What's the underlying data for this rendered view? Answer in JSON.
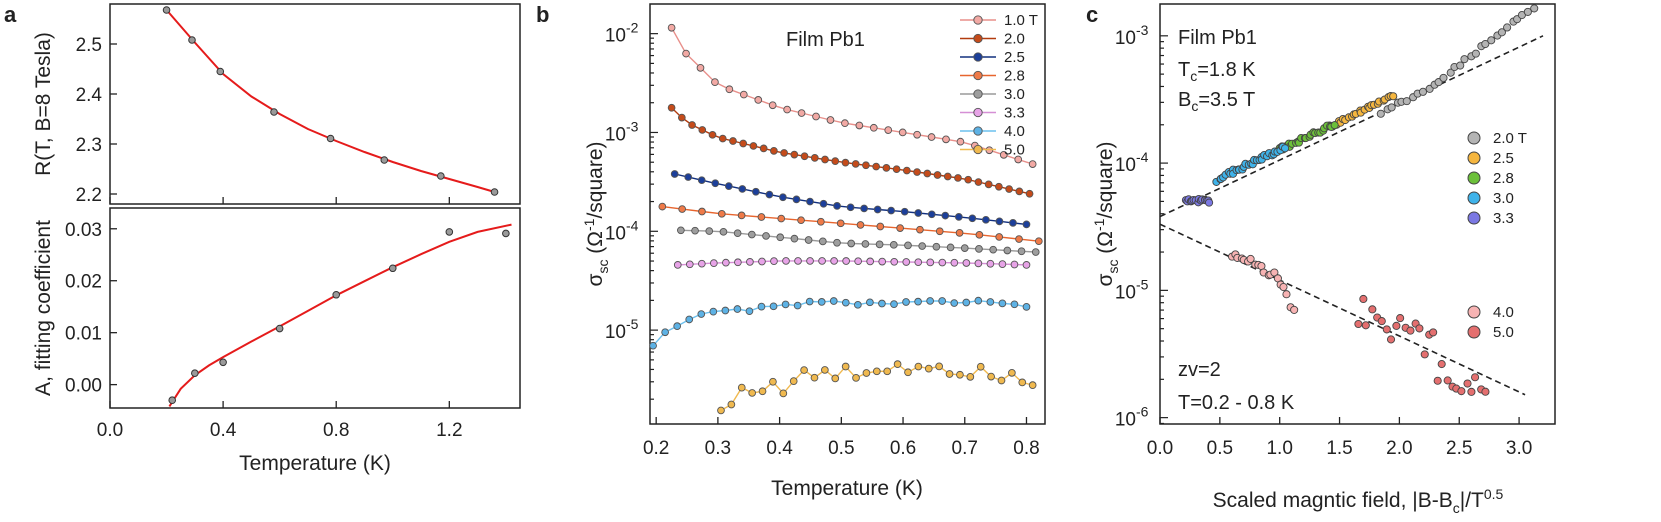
{
  "panels": {
    "a": "a",
    "b": "b",
    "c": "c"
  },
  "chart_data": [
    {
      "id": "a_top",
      "type": "scatter",
      "ylabel": "R(T, B=8 Tesla)",
      "xlim": [
        0.0,
        1.45
      ],
      "ylim": [
        2.18,
        2.58
      ],
      "yticks": [
        2.2,
        2.3,
        2.4,
        2.5
      ],
      "ytick_labels": [
        "2.2",
        "2.3",
        "2.4",
        "2.5"
      ],
      "points_x": [
        0.2,
        0.29,
        0.39,
        0.58,
        0.78,
        0.97,
        1.17,
        1.36
      ],
      "points_y": [
        2.568,
        2.508,
        2.445,
        2.364,
        2.311,
        2.268,
        2.236,
        2.204
      ],
      "fit_x": [
        0.2,
        0.3,
        0.4,
        0.5,
        0.6,
        0.7,
        0.8,
        0.9,
        1.0,
        1.1,
        1.2,
        1.3,
        1.36
      ],
      "fit_y": [
        2.568,
        2.503,
        2.44,
        2.395,
        2.36,
        2.33,
        2.306,
        2.284,
        2.264,
        2.246,
        2.23,
        2.214,
        2.204
      ],
      "point_color": "#9a9a9a",
      "fit_color": "#e51b1b"
    },
    {
      "id": "a_bottom",
      "type": "scatter",
      "xlabel": "Temperature (K)",
      "ylabel": "A, fitting coefficient",
      "xlim": [
        0.0,
        1.45
      ],
      "ylim": [
        -0.0045,
        0.034
      ],
      "xticks": [
        0.0,
        0.4,
        0.8,
        1.2
      ],
      "xtick_labels": [
        "0.0",
        "0.4",
        "0.8",
        "1.2"
      ],
      "yticks": [
        0.0,
        0.01,
        0.02,
        0.03
      ],
      "ytick_labels": [
        "0.00",
        "0.01",
        "0.02",
        "0.03"
      ],
      "points_x": [
        0.22,
        0.3,
        0.4,
        0.6,
        0.8,
        1.0,
        1.2,
        1.4
      ],
      "points_y": [
        -0.003,
        0.0022,
        0.0043,
        0.0108,
        0.0173,
        0.0224,
        0.0294,
        0.0291
      ],
      "fit_x": [
        0.21,
        0.25,
        0.3,
        0.35,
        0.4,
        0.5,
        0.6,
        0.7,
        0.8,
        0.9,
        1.0,
        1.1,
        1.2,
        1.3,
        1.42
      ],
      "fit_y": [
        -0.0042,
        -0.0008,
        0.0018,
        0.0037,
        0.0053,
        0.0083,
        0.0112,
        0.0142,
        0.0172,
        0.0199,
        0.0226,
        0.0251,
        0.0275,
        0.0294,
        0.0308
      ],
      "point_color": "#9a9a9a",
      "fit_color": "#e51b1b"
    },
    {
      "id": "b",
      "type": "line",
      "title": "Film Pb1",
      "xlabel": "Temperature (K)",
      "ylabel": "σ_sc (Ω⁻¹/square)",
      "yscale": "log",
      "xlim": [
        0.19,
        0.83
      ],
      "ylim_log10": [
        -5.95,
        -1.7
      ],
      "xticks": [
        0.2,
        0.3,
        0.4,
        0.5,
        0.6,
        0.7,
        0.8
      ],
      "xtick_labels": [
        "0.2",
        "0.3",
        "0.4",
        "0.5",
        "0.6",
        "0.7",
        "0.8"
      ],
      "ytick_exps": [
        -5,
        -4,
        -3,
        -2
      ],
      "ytick_labels": [
        "10",
        "10",
        "10",
        "10"
      ],
      "ytick_sups": [
        "-5",
        "-4",
        "-3",
        "-2"
      ],
      "series": [
        {
          "name": "1.0 T",
          "color": "#f2a9a4",
          "line": "#e88f8a",
          "start": 0.225,
          "end": 0.81,
          "n": 26,
          "anchors": [
            [
              0.225,
              -1.94
            ],
            [
              0.24,
              -2.15
            ],
            [
              0.3,
              -2.52
            ],
            [
              0.4,
              -2.75
            ],
            [
              0.5,
              -2.9
            ],
            [
              0.6,
              -3.0
            ],
            [
              0.7,
              -3.1
            ],
            [
              0.81,
              -3.32
            ]
          ]
        },
        {
          "name": "2.0",
          "color": "#c54b1a",
          "line": "#b23b0e",
          "start": 0.225,
          "end": 0.805,
          "n": 36,
          "anchors": [
            [
              0.225,
              -2.75
            ],
            [
              0.25,
              -2.9
            ],
            [
              0.3,
              -3.05
            ],
            [
              0.4,
              -3.2
            ],
            [
              0.5,
              -3.3
            ],
            [
              0.6,
              -3.38
            ],
            [
              0.7,
              -3.47
            ],
            [
              0.805,
              -3.62
            ]
          ]
        },
        {
          "name": "2.5",
          "color": "#1c3f9a",
          "line": "#12307e",
          "start": 0.23,
          "end": 0.8,
          "n": 27,
          "anchors": [
            [
              0.23,
              -3.42
            ],
            [
              0.3,
              -3.52
            ],
            [
              0.4,
              -3.65
            ],
            [
              0.5,
              -3.75
            ],
            [
              0.6,
              -3.8
            ],
            [
              0.7,
              -3.86
            ],
            [
              0.8,
              -3.93
            ]
          ]
        },
        {
          "name": "2.8",
          "color": "#ef7a48",
          "line": "#e7652e",
          "start": 0.21,
          "end": 0.82,
          "n": 20,
          "anchors": [
            [
              0.21,
              -3.75
            ],
            [
              0.3,
              -3.82
            ],
            [
              0.5,
              -3.92
            ],
            [
              0.7,
              -4.02
            ],
            [
              0.82,
              -4.1
            ]
          ]
        },
        {
          "name": "3.0",
          "color": "#9e9e9e",
          "line": "#9a9a9a",
          "start": 0.24,
          "end": 0.815,
          "n": 26,
          "anchors": [
            [
              0.24,
              -3.99
            ],
            [
              0.3,
              -4.0
            ],
            [
              0.4,
              -4.06
            ],
            [
              0.5,
              -4.12
            ],
            [
              0.6,
              -4.14
            ],
            [
              0.7,
              -4.17
            ],
            [
              0.815,
              -4.21
            ]
          ]
        },
        {
          "name": "3.3",
          "color": "#e7a3e7",
          "line": "#d58fd5",
          "start": 0.235,
          "end": 0.8,
          "n": 30,
          "anchors": [
            [
              0.235,
              -4.34
            ],
            [
              0.3,
              -4.32
            ],
            [
              0.4,
              -4.3
            ],
            [
              0.5,
              -4.3
            ],
            [
              0.6,
              -4.31
            ],
            [
              0.7,
              -4.32
            ],
            [
              0.8,
              -4.34
            ]
          ]
        },
        {
          "name": "4.0",
          "color": "#5db2e5",
          "line": "#6cc0ee",
          "start": 0.195,
          "end": 0.8,
          "n": 32,
          "anchors": [
            [
              0.195,
              -5.15
            ],
            [
              0.22,
              -4.98
            ],
            [
              0.26,
              -4.87
            ],
            [
              0.3,
              -4.82
            ],
            [
              0.4,
              -4.76
            ],
            [
              0.45,
              -4.72
            ],
            [
              0.6,
              -4.73
            ],
            [
              0.7,
              -4.71
            ],
            [
              0.8,
              -4.76
            ]
          ]
        },
        {
          "name": "5.0",
          "color": "#f0b94f",
          "line": "#f0b94f",
          "start": 0.305,
          "end": 0.81,
          "n": 31,
          "anchors": [
            [
              0.305,
              -5.82
            ],
            [
              0.35,
              -5.55
            ],
            [
              0.4,
              -5.6
            ],
            [
              0.45,
              -5.45
            ],
            [
              0.5,
              -5.45
            ],
            [
              0.6,
              -5.35
            ],
            [
              0.7,
              -5.38
            ],
            [
              0.81,
              -5.48
            ]
          ]
        }
      ]
    },
    {
      "id": "c",
      "type": "scatter",
      "xlabel": "Scaled magntic field,  |B-B_c|/T^0.5",
      "ylabel": "σ_sc (Ω⁻¹/square)",
      "yscale": "log",
      "xlim": [
        0.0,
        3.3
      ],
      "ylim_log10": [
        -6.05,
        -2.75
      ],
      "xticks": [
        0.0,
        0.5,
        1.0,
        1.5,
        2.0,
        2.5,
        3.0
      ],
      "xtick_labels": [
        "0.0",
        "0.5",
        "1.0",
        "1.5",
        "2.0",
        "2.5",
        "3.0"
      ],
      "ytick_exps": [
        -6,
        -5,
        -4,
        -3
      ],
      "ytick_labels": [
        "10",
        "10",
        "10",
        "10"
      ],
      "ytick_sups": [
        "-6",
        "-5",
        "-4",
        "-3"
      ],
      "upper_fit": {
        "x": [
          0.0,
          3.2
        ],
        "log10": [
          -4.42,
          -3.0
        ]
      },
      "lower_fit": {
        "x": [
          0.0,
          3.05
        ],
        "log10": [
          -4.48,
          -5.82
        ]
      },
      "series": [
        {
          "name": "2.0 T",
          "color": "#b4b4b4",
          "start": 1.85,
          "end": 3.12,
          "n": 30,
          "noise": 0.015
        },
        {
          "name": "2.5",
          "color": "#f5b63f",
          "start": 1.4,
          "end": 1.95,
          "n": 26,
          "noise": 0.015
        },
        {
          "name": "2.8",
          "color": "#6cc03a",
          "start": 0.98,
          "end": 1.45,
          "n": 26,
          "noise": 0.015
        },
        {
          "name": "3.0",
          "color": "#3fb3ea",
          "start": 0.48,
          "end": 1.05,
          "n": 34,
          "noise": 0.02
        },
        {
          "name": "3.3",
          "color": "#7b78e3",
          "start": 0.22,
          "end": 0.42,
          "n": 16,
          "noise": 0.02
        },
        {
          "name": "4.0",
          "color": "#f7b3b3",
          "start": 0.6,
          "end": 1.12,
          "n": 20,
          "noise": 0.05
        },
        {
          "name": "5.0",
          "color": "#e46f6f",
          "start": 1.65,
          "end": 2.72,
          "n": 28,
          "noise": 0.09
        }
      ],
      "annotations": {
        "film": "Film Pb1",
        "tc_main": "T",
        "tc_sub": "c",
        "tc_val": "=1.8 K",
        "bc_main": "B",
        "bc_sub": "c",
        "bc_val": "=3.5 T",
        "zv": "zv=2",
        "trange": "T=0.2 - 0.8 K"
      }
    }
  ]
}
